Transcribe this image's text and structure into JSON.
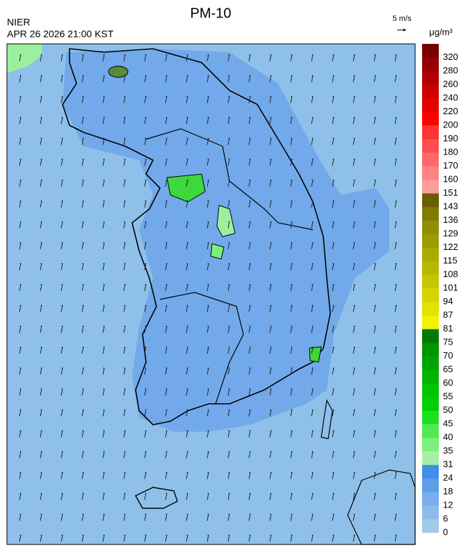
{
  "header": {
    "title": "PM-10",
    "source": "NIER",
    "time": "APR 26 2026 21:00 KST"
  },
  "wind_legend": {
    "label": "5 m/s"
  },
  "colorbar": {
    "unit": "μg/m³",
    "ticks": [
      0,
      6,
      12,
      18,
      24,
      31,
      35,
      40,
      45,
      50,
      55,
      60,
      65,
      70,
      75,
      81,
      87,
      94,
      101,
      108,
      115,
      122,
      129,
      136,
      143,
      151,
      160,
      170,
      180,
      190,
      200,
      220,
      240,
      260,
      280,
      320
    ],
    "colors": [
      "#a2c9ea",
      "#8dbceb",
      "#78aeeb",
      "#5e9ee9",
      "#3f8eea",
      "#a6f0a6",
      "#7cf07c",
      "#52e852",
      "#1ee01e",
      "#00d000",
      "#00c400",
      "#00b400",
      "#00a400",
      "#009400",
      "#007a00",
      "#f2f200",
      "#e2e200",
      "#d4d400",
      "#c6c600",
      "#b8b800",
      "#aaaa00",
      "#9c9c00",
      "#8e8e00",
      "#7e7c00",
      "#6a5e00",
      "#ff9c9c",
      "#ff8282",
      "#ff6868",
      "#ff4e4e",
      "#ff3434",
      "#ff0000",
      "#e60000",
      "#cc0000",
      "#b20000",
      "#960000",
      "#780000"
    ]
  }
}
